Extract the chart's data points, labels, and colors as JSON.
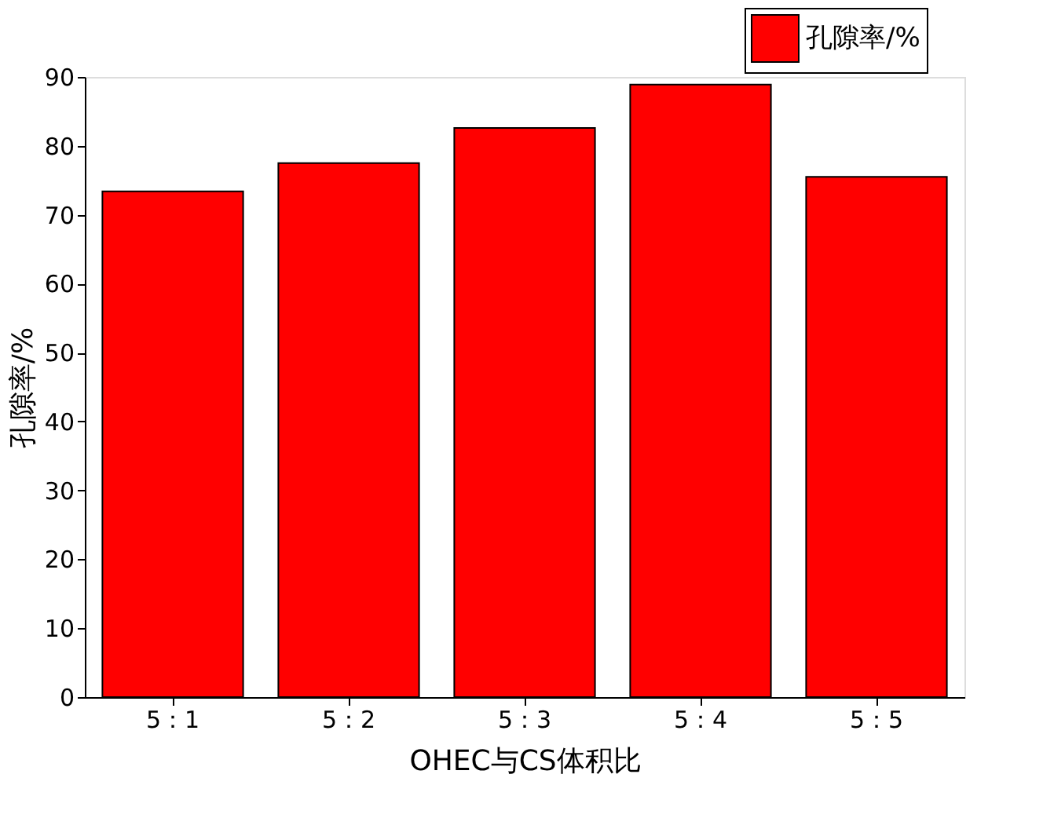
{
  "chart_data": {
    "type": "bar",
    "xlabel": "OHEC与CS体积比",
    "ylabel": "孔隙率/%",
    "categories": [
      "5：1",
      "5：2",
      "5：3",
      "5：4",
      "5：5"
    ],
    "series": [
      {
        "name": "孔隙率/%",
        "color": "#ff0000",
        "values": [
          73.4,
          77.5,
          82.6,
          88.9,
          75.5
        ]
      }
    ],
    "ylim": [
      0,
      90
    ],
    "yticks": [
      0,
      10,
      20,
      30,
      40,
      50,
      60,
      70,
      80,
      90
    ],
    "grid": false,
    "legend": "top right"
  }
}
